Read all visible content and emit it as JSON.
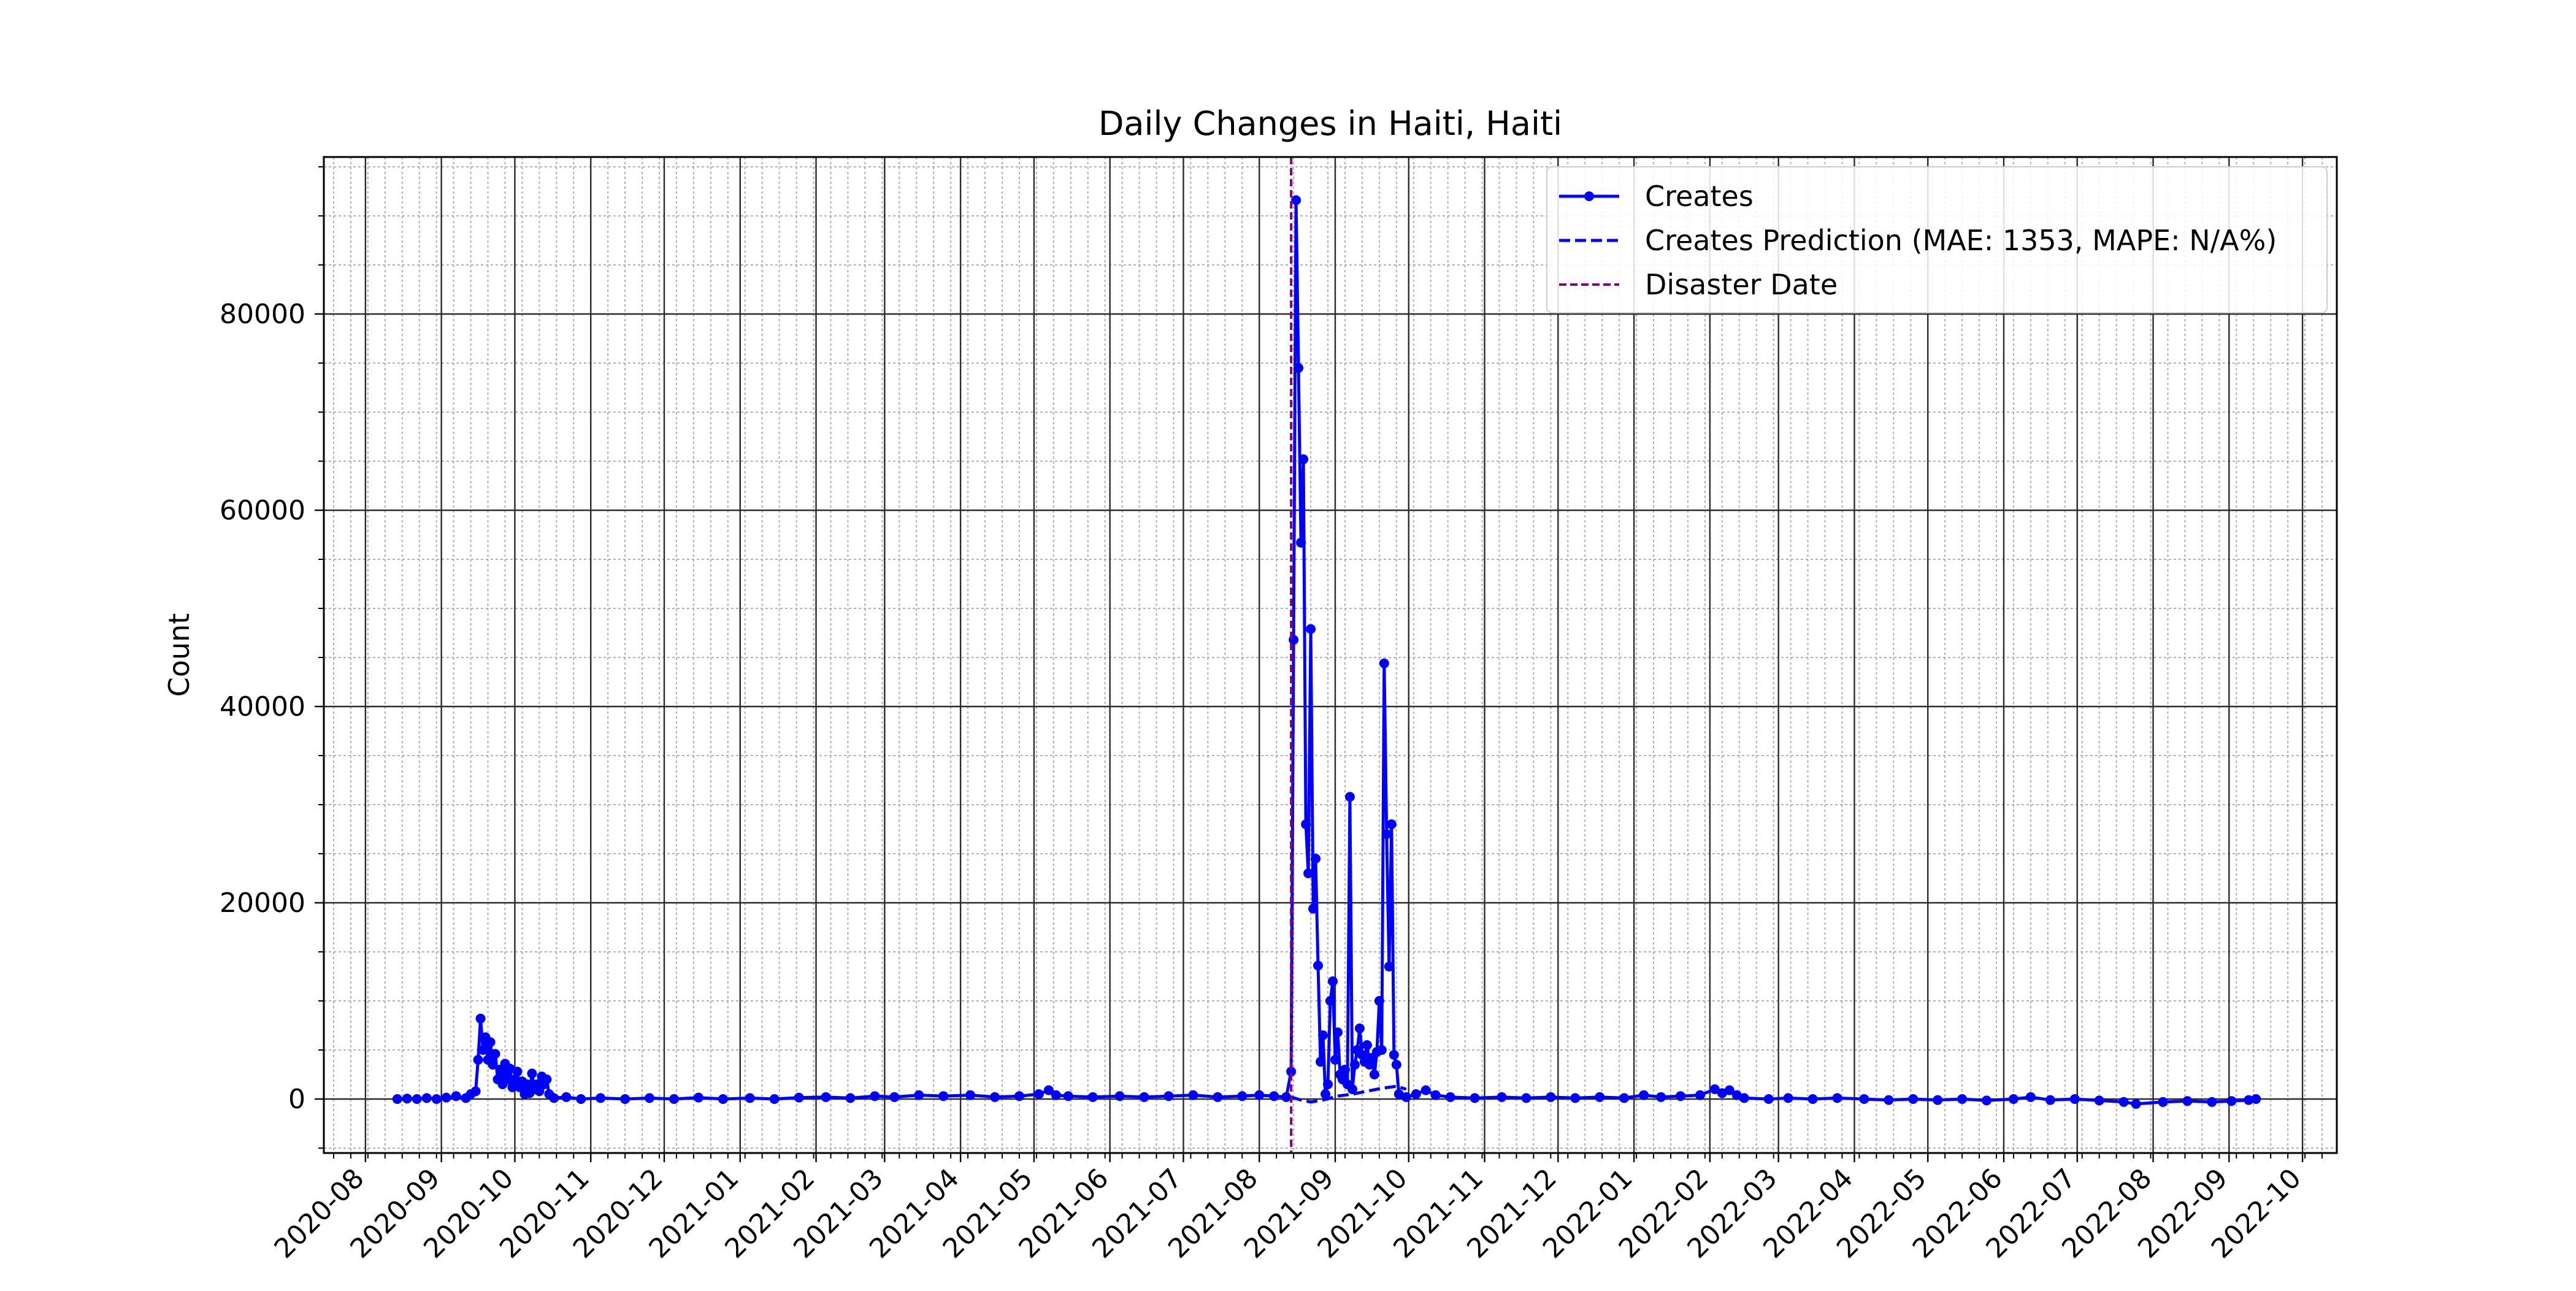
{
  "chart_data": {
    "type": "line",
    "title": "Daily Changes in Haiti, Haiti",
    "xlabel": "",
    "ylabel": "Count",
    "x_axis_type": "date",
    "xlim": [
      "2020-07-15",
      "2022-10-15"
    ],
    "ylim": [
      -5500,
      96000
    ],
    "grid": true,
    "minor_grid": true,
    "legend_position": "top-right",
    "x_tick_labels": [
      "2020-08",
      "2020-09",
      "2020-10",
      "2020-11",
      "2020-12",
      "2021-01",
      "2021-02",
      "2021-03",
      "2021-04",
      "2021-05",
      "2021-06",
      "2021-07",
      "2021-08",
      "2021-09",
      "2021-10",
      "2021-11",
      "2021-12",
      "2022-01",
      "2022-02",
      "2022-03",
      "2022-04",
      "2022-05",
      "2022-06",
      "2022-07",
      "2022-08",
      "2022-09",
      "2022-10"
    ],
    "y_ticks": [
      0,
      20000,
      40000,
      60000,
      80000
    ],
    "y_tick_labels": [
      "0",
      "20000",
      "40000",
      "60000",
      "80000"
    ],
    "legend": [
      {
        "label": "Creates",
        "style": "solid-marker",
        "color": "#0000ff"
      },
      {
        "label": "Creates Prediction (MAE: 1353, MAPE: N/A%)",
        "style": "dashed",
        "color": "#0000ff"
      },
      {
        "label": "Disaster Date",
        "style": "dashed-thin",
        "color": "#800080"
      }
    ],
    "disaster_date": "2021-08-14",
    "series": [
      {
        "name": "Creates",
        "color": "#0000ff",
        "points": [
          [
            "2020-08-14",
            0
          ],
          [
            "2020-08-18",
            50
          ],
          [
            "2020-08-22",
            0
          ],
          [
            "2020-08-26",
            100
          ],
          [
            "2020-08-30",
            0
          ],
          [
            "2020-09-03",
            150
          ],
          [
            "2020-09-07",
            300
          ],
          [
            "2020-09-11",
            100
          ],
          [
            "2020-09-13",
            500
          ],
          [
            "2020-09-15",
            800
          ],
          [
            "2020-09-16",
            4000
          ],
          [
            "2020-09-17",
            8200
          ],
          [
            "2020-09-18",
            5000
          ],
          [
            "2020-09-19",
            6300
          ],
          [
            "2020-09-20",
            4000
          ],
          [
            "2020-09-21",
            5800
          ],
          [
            "2020-09-22",
            3500
          ],
          [
            "2020-09-23",
            4600
          ],
          [
            "2020-09-24",
            2000
          ],
          [
            "2020-09-25",
            3000
          ],
          [
            "2020-09-26",
            1500
          ],
          [
            "2020-09-27",
            3600
          ],
          [
            "2020-09-28",
            2000
          ],
          [
            "2020-09-29",
            3100
          ],
          [
            "2020-09-30",
            1200
          ],
          [
            "2020-10-01",
            2000
          ],
          [
            "2020-10-02",
            2800
          ],
          [
            "2020-10-03",
            1200
          ],
          [
            "2020-10-04",
            1800
          ],
          [
            "2020-10-05",
            500
          ],
          [
            "2020-10-06",
            1500
          ],
          [
            "2020-10-07",
            600
          ],
          [
            "2020-10-08",
            2600
          ],
          [
            "2020-10-09",
            1000
          ],
          [
            "2020-10-10",
            1500
          ],
          [
            "2020-10-11",
            800
          ],
          [
            "2020-10-12",
            2300
          ],
          [
            "2020-10-13",
            1500
          ],
          [
            "2020-10-14",
            2000
          ],
          [
            "2020-10-15",
            500
          ],
          [
            "2020-10-17",
            100
          ],
          [
            "2020-10-22",
            200
          ],
          [
            "2020-10-28",
            0
          ],
          [
            "2020-11-05",
            100
          ],
          [
            "2020-11-15",
            0
          ],
          [
            "2020-11-25",
            100
          ],
          [
            "2020-12-05",
            0
          ],
          [
            "2020-12-15",
            150
          ],
          [
            "2020-12-25",
            0
          ],
          [
            "2021-01-05",
            100
          ],
          [
            "2021-01-15",
            0
          ],
          [
            "2021-01-25",
            150
          ],
          [
            "2021-02-05",
            200
          ],
          [
            "2021-02-15",
            100
          ],
          [
            "2021-02-25",
            300
          ],
          [
            "2021-03-05",
            200
          ],
          [
            "2021-03-15",
            400
          ],
          [
            "2021-03-25",
            300
          ],
          [
            "2021-04-05",
            400
          ],
          [
            "2021-04-15",
            200
          ],
          [
            "2021-04-25",
            300
          ],
          [
            "2021-05-03",
            500
          ],
          [
            "2021-05-07",
            900
          ],
          [
            "2021-05-10",
            400
          ],
          [
            "2021-05-15",
            300
          ],
          [
            "2021-05-25",
            200
          ],
          [
            "2021-06-05",
            300
          ],
          [
            "2021-06-15",
            200
          ],
          [
            "2021-06-25",
            300
          ],
          [
            "2021-07-05",
            400
          ],
          [
            "2021-07-15",
            200
          ],
          [
            "2021-07-25",
            300
          ],
          [
            "2021-08-01",
            400
          ],
          [
            "2021-08-07",
            300
          ],
          [
            "2021-08-12",
            200
          ],
          [
            "2021-08-14",
            2800
          ],
          [
            "2021-08-15",
            46800
          ],
          [
            "2021-08-16",
            91600
          ],
          [
            "2021-08-17",
            74500
          ],
          [
            "2021-08-18",
            56700
          ],
          [
            "2021-08-19",
            65200
          ],
          [
            "2021-08-20",
            28000
          ],
          [
            "2021-08-21",
            23000
          ],
          [
            "2021-08-22",
            47900
          ],
          [
            "2021-08-23",
            19400
          ],
          [
            "2021-08-24",
            24500
          ],
          [
            "2021-08-25",
            13600
          ],
          [
            "2021-08-26",
            3800
          ],
          [
            "2021-08-27",
            6500
          ],
          [
            "2021-08-28",
            500
          ],
          [
            "2021-08-29",
            1500
          ],
          [
            "2021-08-30",
            10000
          ],
          [
            "2021-08-31",
            12000
          ],
          [
            "2021-09-01",
            4000
          ],
          [
            "2021-09-02",
            6800
          ],
          [
            "2021-09-03",
            2500
          ],
          [
            "2021-09-04",
            2000
          ],
          [
            "2021-09-05",
            3000
          ],
          [
            "2021-09-06",
            1500
          ],
          [
            "2021-09-07",
            30800
          ],
          [
            "2021-09-08",
            1000
          ],
          [
            "2021-09-09",
            3500
          ],
          [
            "2021-09-10",
            5000
          ],
          [
            "2021-09-11",
            7200
          ],
          [
            "2021-09-12",
            4500
          ],
          [
            "2021-09-13",
            3800
          ],
          [
            "2021-09-14",
            5500
          ],
          [
            "2021-09-15",
            3500
          ],
          [
            "2021-09-16",
            4200
          ],
          [
            "2021-09-17",
            2500
          ],
          [
            "2021-09-18",
            4800
          ],
          [
            "2021-09-19",
            10000
          ],
          [
            "2021-09-20",
            5000
          ],
          [
            "2021-09-21",
            44400
          ],
          [
            "2021-09-22",
            27000
          ],
          [
            "2021-09-23",
            13500
          ],
          [
            "2021-09-24",
            28000
          ],
          [
            "2021-09-25",
            4500
          ],
          [
            "2021-09-26",
            3500
          ],
          [
            "2021-09-27",
            500
          ],
          [
            "2021-09-30",
            200
          ],
          [
            "2021-10-04",
            500
          ],
          [
            "2021-10-08",
            900
          ],
          [
            "2021-10-12",
            400
          ],
          [
            "2021-10-18",
            200
          ],
          [
            "2021-10-28",
            100
          ],
          [
            "2021-11-08",
            200
          ],
          [
            "2021-11-18",
            100
          ],
          [
            "2021-11-28",
            200
          ],
          [
            "2021-12-08",
            100
          ],
          [
            "2021-12-18",
            200
          ],
          [
            "2021-12-28",
            100
          ],
          [
            "2022-01-05",
            400
          ],
          [
            "2022-01-12",
            200
          ],
          [
            "2022-01-20",
            300
          ],
          [
            "2022-01-28",
            400
          ],
          [
            "2022-02-03",
            1000
          ],
          [
            "2022-02-06",
            600
          ],
          [
            "2022-02-09",
            900
          ],
          [
            "2022-02-12",
            400
          ],
          [
            "2022-02-15",
            100
          ],
          [
            "2022-02-25",
            0
          ],
          [
            "2022-03-05",
            100
          ],
          [
            "2022-03-15",
            0
          ],
          [
            "2022-03-25",
            100
          ],
          [
            "2022-04-05",
            0
          ],
          [
            "2022-04-15",
            -100
          ],
          [
            "2022-04-25",
            0
          ],
          [
            "2022-05-05",
            -100
          ],
          [
            "2022-05-15",
            0
          ],
          [
            "2022-05-25",
            -150
          ],
          [
            "2022-06-05",
            0
          ],
          [
            "2022-06-12",
            200
          ],
          [
            "2022-06-20",
            -100
          ],
          [
            "2022-06-30",
            0
          ],
          [
            "2022-07-10",
            -150
          ],
          [
            "2022-07-20",
            -300
          ],
          [
            "2022-07-25",
            -500
          ],
          [
            "2022-08-05",
            -300
          ],
          [
            "2022-08-15",
            -200
          ],
          [
            "2022-08-25",
            -300
          ],
          [
            "2022-09-02",
            -200
          ],
          [
            "2022-09-09",
            -100
          ],
          [
            "2022-09-12",
            0
          ]
        ]
      },
      {
        "name": "Creates Prediction (MAE: 1353, MAPE: N/A%)",
        "color": "#0000ff",
        "points": [
          [
            "2021-08-14",
            200
          ],
          [
            "2021-08-18",
            -100
          ],
          [
            "2021-08-22",
            -300
          ],
          [
            "2021-08-27",
            -100
          ],
          [
            "2021-09-02",
            300
          ],
          [
            "2021-09-08",
            500
          ],
          [
            "2021-09-14",
            800
          ],
          [
            "2021-09-20",
            1100
          ],
          [
            "2021-09-26",
            1300
          ],
          [
            "2021-09-30",
            1000
          ]
        ]
      }
    ]
  }
}
